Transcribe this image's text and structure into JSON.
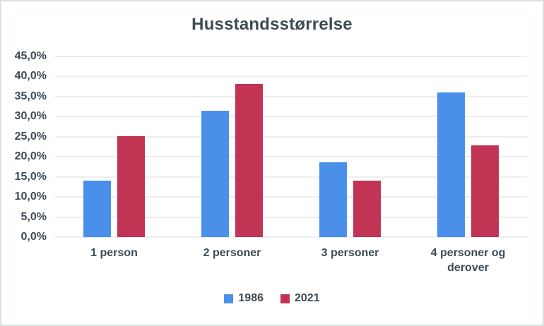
{
  "chart_data": {
    "type": "bar",
    "title": "Husstandsstørrelse",
    "categories": [
      "1 person",
      "2 personer",
      "3 personer",
      "4 personer og derover"
    ],
    "series": [
      {
        "name": "1986",
        "color": "#4a90ea",
        "values": [
          14.0,
          31.5,
          18.7,
          36.0
        ]
      },
      {
        "name": "2021",
        "color": "#c13454",
        "values": [
          25.1,
          38.2,
          14.0,
          22.8
        ]
      }
    ],
    "xlabel": "",
    "ylabel": "",
    "ylim": [
      0,
      45
    ],
    "y_tick_step": 5,
    "y_tick_labels": [
      "0,0%",
      "5,0%",
      "10,0%",
      "15,0%",
      "20,0%",
      "25,0%",
      "30,0%",
      "35,0%",
      "40,0%",
      "45,0%"
    ],
    "grid": "horizontal",
    "legend_position": "bottom",
    "colors": {
      "text": "#3d4b54",
      "gridline": "#d8dddd",
      "background": "#ffffff",
      "border": "#d9e2e0"
    }
  }
}
